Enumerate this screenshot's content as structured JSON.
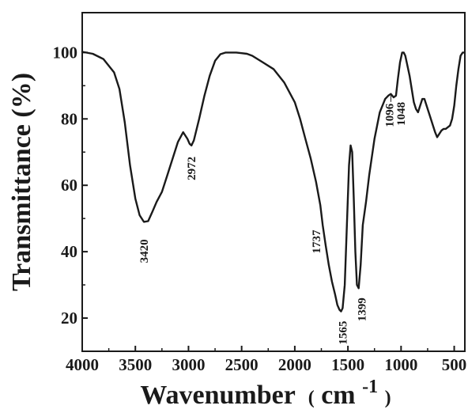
{
  "chart_data": {
    "type": "line",
    "xlabel": "Wavenumber",
    "xlabel_unit_open": "(",
    "xlabel_unit": "cm",
    "xlabel_unit_sup": "-1",
    "xlabel_unit_close": ")",
    "ylabel": "Transmittance (%)",
    "xlim": [
      4000,
      400
    ],
    "x_reversed": true,
    "ylim": [
      10,
      112
    ],
    "x_ticks": [
      4000,
      3500,
      3000,
      2500,
      2000,
      1500,
      1000,
      500
    ],
    "x_tick_labels": [
      "4000",
      "3500",
      "3000",
      "2500",
      "2000",
      "1500",
      "1000",
      "500"
    ],
    "y_ticks": [
      20,
      40,
      60,
      80,
      100
    ],
    "y_tick_labels": [
      "20",
      "40",
      "60",
      "80",
      "100"
    ],
    "grid": false,
    "series": [
      {
        "color": "#1a1a1a",
        "x": [
          4000,
          3900,
          3800,
          3700,
          3650,
          3600,
          3550,
          3500,
          3460,
          3420,
          3380,
          3340,
          3300,
          3250,
          3200,
          3150,
          3100,
          3050,
          3010,
          2990,
          2972,
          2950,
          2900,
          2850,
          2800,
          2750,
          2700,
          2650,
          2600,
          2550,
          2500,
          2450,
          2400,
          2300,
          2200,
          2100,
          2000,
          1950,
          1900,
          1850,
          1800,
          1760,
          1737,
          1710,
          1680,
          1650,
          1620,
          1600,
          1580,
          1565,
          1550,
          1530,
          1510,
          1490,
          1475,
          1460,
          1445,
          1430,
          1415,
          1399,
          1380,
          1360,
          1330,
          1300,
          1250,
          1200,
          1150,
          1120,
          1096,
          1070,
          1048,
          1030,
          1010,
          990,
          975,
          960,
          940,
          920,
          900,
          880,
          860,
          840,
          820,
          800,
          780,
          760,
          740,
          720,
          700,
          680,
          660,
          640,
          620,
          600,
          580,
          560,
          540,
          520,
          500,
          480,
          460,
          440,
          420,
          410
        ],
        "y": [
          100.2,
          99.6,
          98,
          94,
          89,
          79,
          66,
          56,
          51,
          49,
          49.2,
          52,
          55,
          58,
          63,
          68,
          73,
          76,
          74,
          72.5,
          72,
          73.5,
          80,
          87,
          93,
          97.5,
          99.5,
          100,
          100,
          100,
          99.8,
          99.6,
          99,
          97,
          95,
          91,
          85,
          80,
          74,
          68,
          61,
          54,
          48,
          42,
          36,
          31,
          27,
          24,
          22.5,
          22,
          23,
          30,
          48,
          66,
          72,
          70,
          56,
          40,
          30,
          29,
          36,
          48,
          55,
          63,
          74,
          82,
          86,
          87,
          87.5,
          86.5,
          87,
          92,
          97,
          100,
          100,
          99,
          96,
          93,
          89,
          85,
          83,
          82,
          84,
          86,
          86,
          84,
          82,
          80,
          78,
          76,
          74.5,
          75.5,
          76.5,
          77,
          77,
          77.5,
          78,
          80,
          84,
          90,
          95,
          99,
          100,
          100
        ]
      }
    ],
    "annotations": [
      {
        "text": "3420",
        "x": 3420,
        "y": 49
      },
      {
        "text": "2972",
        "x": 2972,
        "y": 72
      },
      {
        "text": "1737",
        "x": 1737,
        "y": 48
      },
      {
        "text": "1565",
        "x": 1565,
        "y": 22
      },
      {
        "text": "1399",
        "x": 1399,
        "y": 29
      },
      {
        "text": "1096",
        "x": 1096,
        "y": 87.5
      },
      {
        "text": "1048",
        "x": 1048,
        "y": 87
      }
    ]
  }
}
